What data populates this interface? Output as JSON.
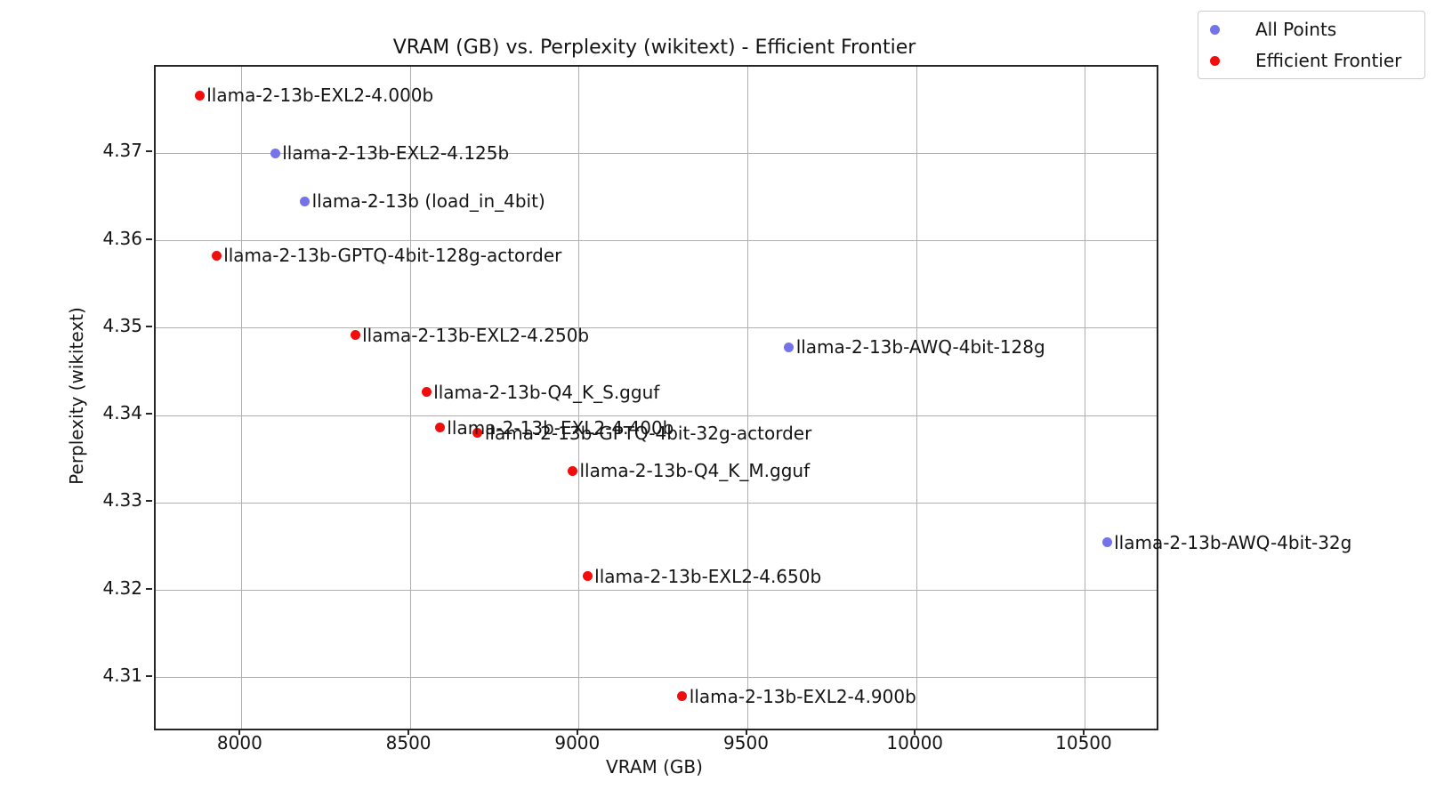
{
  "chart_data": {
    "type": "scatter",
    "title": "VRAM (GB) vs. Perplexity (wikitext) - Efficient Frontier",
    "xlabel": "VRAM (GB)",
    "ylabel": "Perplexity (wikitext)",
    "xlim": [
      7746,
      10711
    ],
    "ylim": [
      4.3042,
      4.3799
    ],
    "grid": true,
    "x_ticks": [
      8000,
      8500,
      9000,
      9500,
      10000,
      10500
    ],
    "x_tick_labels": [
      "8000",
      "8500",
      "9000",
      "9500",
      "10000",
      "10500"
    ],
    "y_ticks": [
      4.37,
      4.36,
      4.35,
      4.34,
      4.33,
      4.32,
      4.31
    ],
    "y_tick_labels": [
      "4.37",
      "4.36",
      "4.35",
      "4.34",
      "4.33",
      "4.32",
      "4.31"
    ],
    "legend": {
      "position": "upper right",
      "entries": [
        {
          "label": "All Points",
          "color": "#7473ea"
        },
        {
          "label": "Efficient Frontier",
          "color": "#f20d0d"
        }
      ]
    },
    "series": [
      {
        "name": "All Points",
        "color": "#7473ea",
        "points": [
          {
            "label": "llama-2-13b-EXL2-4.125b",
            "x": 8105,
            "y": 4.3698
          },
          {
            "label": "llama-2-13b (load_in_4bit)",
            "x": 8193,
            "y": 4.3643
          },
          {
            "label": "llama-2-13b-AWQ-4bit-128g",
            "x": 9627,
            "y": 4.3476
          },
          {
            "label": "llama-2-13b-AWQ-4bit-32g",
            "x": 10569,
            "y": 4.3253
          }
        ]
      },
      {
        "name": "Efficient Frontier",
        "color": "#f20d0d",
        "points": [
          {
            "label": "llama-2-13b-EXL2-4.000b",
            "x": 7881,
            "y": 4.3764
          },
          {
            "label": "llama-2-13b-GPTQ-4bit-128g-actorder",
            "x": 7931,
            "y": 4.3581
          },
          {
            "label": "llama-2-13b-EXL2-4.250b",
            "x": 8342,
            "y": 4.349
          },
          {
            "label": "llama-2-13b-Q4_K_S.gguf",
            "x": 8553,
            "y": 4.3425
          },
          {
            "label": "llama-2-13b-EXL2-4.400b",
            "x": 8593,
            "y": 4.3384
          },
          {
            "label": "llama-2-13b-GPTQ-4bit-32g-actorder",
            "x": 8705,
            "y": 4.3378
          },
          {
            "label": "llama-2-13b-Q4_K_M.gguf",
            "x": 8986,
            "y": 4.3335
          },
          {
            "label": "llama-2-13b-EXL2-4.650b",
            "x": 9030,
            "y": 4.3214
          },
          {
            "label": "llama-2-13b-EXL2-4.900b",
            "x": 9311,
            "y": 4.3077
          }
        ]
      }
    ]
  }
}
